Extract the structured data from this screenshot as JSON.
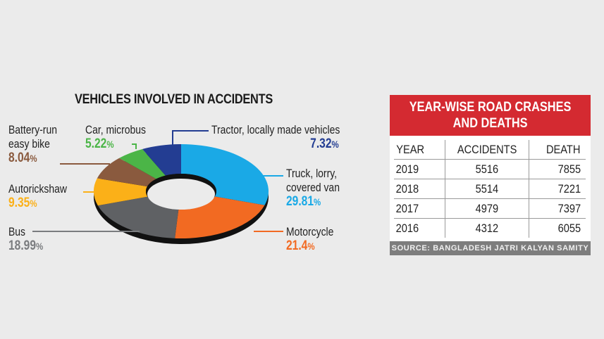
{
  "chart_data": [
    {
      "type": "pie",
      "title": "VEHICLES INVOLVED IN ACCIDENTS",
      "variant": "donut",
      "categories": [
        "Truck, lorry, covered van",
        "Motorcycle",
        "Bus",
        "Autorickshaw",
        "Battery-run easy bike",
        "Car, microbus",
        "Tractor, locally made vehicles"
      ],
      "values": [
        29.81,
        21.4,
        18.99,
        9.35,
        8.04,
        5.22,
        7.32
      ],
      "colors": [
        "#1aa9e6",
        "#f26a22",
        "#5f6164",
        "#fbb018",
        "#8a5a3e",
        "#4bb547",
        "#233d92"
      ],
      "unit": "%"
    },
    {
      "type": "table",
      "title": "YEAR-WISE ROAD CRASHES AND DEATHS",
      "columns": [
        "YEAR",
        "ACCIDENTS",
        "DEATH"
      ],
      "rows": [
        [
          "2019",
          "5516",
          "7855"
        ],
        [
          "2018",
          "5514",
          "7221"
        ],
        [
          "2017",
          "4979",
          "7397"
        ],
        [
          "2016",
          "4312",
          "6055"
        ]
      ],
      "source": "SOURCE: BANGLADESH JATRI KALYAN SAMITY"
    }
  ],
  "pie": {
    "title": "VEHICLES INVOLVED IN ACCIDENTS",
    "labels": {
      "battery": {
        "name1": "Battery-run",
        "name2": "easy bike",
        "pct": "8.04",
        "color": "#8a5a3e"
      },
      "car": {
        "name1": "Car, microbus",
        "pct": "5.22",
        "color": "#4bb547"
      },
      "tractor": {
        "name1": "Tractor, locally made vehicles",
        "pct": "7.32",
        "color": "#233d92"
      },
      "truck": {
        "name1": "Truck, lorry,",
        "name2": "covered van",
        "pct": "29.81",
        "color": "#1aa9e6"
      },
      "auto": {
        "name1": "Autorickshaw",
        "pct": "9.35",
        "color": "#fbb018"
      },
      "bus": {
        "name1": "Bus",
        "pct": "18.99",
        "color": "#7a7c7f"
      },
      "moto": {
        "name1": "Motorcycle",
        "pct": "21.4",
        "color": "#f26a22"
      }
    },
    "pct_sign": "%"
  },
  "table": {
    "title_line1": "YEAR-WISE ROAD CRASHES",
    "title_line2": "AND DEATHS",
    "headers": [
      "YEAR",
      "ACCIDENTS",
      "DEATH"
    ],
    "rows": [
      [
        "2019",
        "5516",
        "7855"
      ],
      [
        "2018",
        "5514",
        "7221"
      ],
      [
        "2017",
        "4979",
        "7397"
      ],
      [
        "2016",
        "4312",
        "6055"
      ]
    ],
    "source": "SOURCE: BANGLADESH JATRI KALYAN SAMITY"
  }
}
